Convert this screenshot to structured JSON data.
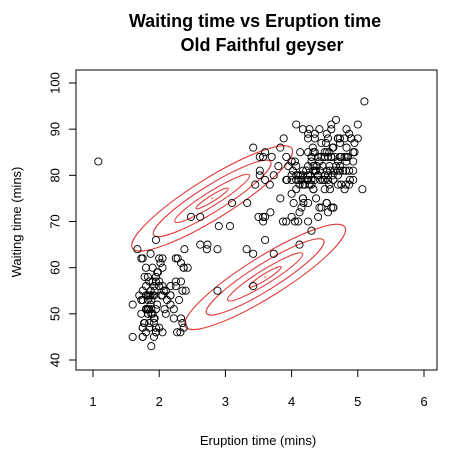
{
  "chart_data": {
    "type": "scatter",
    "title": "Waiting time vs Eruption time",
    "subtitle": "Old Faithful geyser",
    "xlabel": "Eruption time (mins)",
    "ylabel": "Waiting time (mins)",
    "xlim": [
      1,
      6
    ],
    "ylim": [
      40,
      100
    ],
    "xticks": [
      "1",
      "2",
      "3",
      "4",
      "5",
      "6"
    ],
    "yticks": [
      "40",
      "50",
      "60",
      "70",
      "80",
      "90",
      "100"
    ],
    "point_color": "#000000",
    "contour_color": "#e03c3c",
    "grid": false,
    "series": [
      {
        "points": [
          [
            3.6,
            79
          ],
          [
            1.8,
            54
          ],
          [
            3.33,
            74
          ],
          [
            2.28,
            62
          ],
          [
            4.53,
            85
          ],
          [
            2.88,
            55
          ],
          [
            4.7,
            88
          ],
          [
            3.6,
            85
          ],
          [
            1.95,
            51
          ],
          [
            4.35,
            85
          ],
          [
            1.83,
            54
          ],
          [
            3.92,
            84
          ],
          [
            4.2,
            78
          ],
          [
            1.75,
            47
          ],
          [
            4.7,
            83
          ],
          [
            2.17,
            52
          ],
          [
            1.75,
            62
          ],
          [
            4.8,
            84
          ],
          [
            1.6,
            52
          ],
          [
            4.25,
            79
          ],
          [
            1.8,
            51
          ],
          [
            1.75,
            47
          ],
          [
            3.45,
            78
          ],
          [
            3.07,
            69
          ],
          [
            4.53,
            74
          ],
          [
            1.08,
            83
          ],
          [
            2.25,
            62
          ],
          [
            4.75,
            78
          ],
          [
            3.52,
            81
          ],
          [
            4.4,
            80
          ],
          [
            2.73,
            65
          ],
          [
            4.4,
            80
          ],
          [
            4.25,
            74
          ],
          [
            4.93,
            83
          ],
          [
            1.75,
            45
          ],
          [
            3.8,
            82
          ],
          [
            1.6,
            45
          ],
          [
            3.42,
            86
          ],
          [
            4.55,
            72
          ],
          [
            1.73,
            53
          ],
          [
            1.67,
            64
          ],
          [
            4.63,
            73
          ],
          [
            1.88,
            50
          ],
          [
            4.33,
            82
          ],
          [
            1.95,
            46
          ],
          [
            4.0,
            83
          ],
          [
            1.83,
            53
          ],
          [
            4.38,
            82
          ],
          [
            1.8,
            51
          ],
          [
            4.6,
            91
          ],
          [
            1.92,
            45
          ],
          [
            4.35,
            89
          ],
          [
            2.72,
            64
          ],
          [
            4.37,
            75
          ],
          [
            4.0,
            79
          ],
          [
            4.12,
            65
          ],
          [
            4.78,
            81
          ],
          [
            1.9,
            57
          ],
          [
            4.22,
            81
          ],
          [
            4.2,
            78
          ],
          [
            1.92,
            48
          ],
          [
            4.05,
            83
          ],
          [
            2.0,
            62
          ],
          [
            4.62,
            80
          ],
          [
            2.3,
            53
          ],
          [
            4.43,
            79
          ],
          [
            2.17,
            54
          ],
          [
            4.7,
            78
          ],
          [
            1.75,
            45
          ],
          [
            4.83,
            84
          ],
          [
            2.22,
            51
          ],
          [
            4.7,
            80
          ],
          [
            1.87,
            52
          ],
          [
            4.1,
            70
          ],
          [
            1.73,
            62
          ],
          [
            4.67,
            82
          ],
          [
            1.78,
            48
          ],
          [
            4.4,
            80
          ],
          [
            1.87,
            54
          ],
          [
            4.57,
            85
          ],
          [
            1.95,
            58
          ],
          [
            4.87,
            89
          ],
          [
            1.9,
            54
          ],
          [
            5.1,
            96
          ],
          [
            1.8,
            46
          ],
          [
            4.5,
            79
          ],
          [
            2.37,
            47
          ],
          [
            4.25,
            82
          ],
          [
            3.83,
            86
          ],
          [
            4.73,
            82
          ],
          [
            4.65,
            81
          ],
          [
            3.87,
            70
          ],
          [
            4.73,
            81
          ],
          [
            4.8,
            77
          ],
          [
            4.93,
            81
          ],
          [
            4.33,
            77
          ],
          [
            4.18,
            74
          ],
          [
            5.0,
            88
          ],
          [
            4.35,
            81
          ],
          [
            4.7,
            88
          ],
          [
            3.42,
            56
          ],
          [
            4.45,
            87
          ],
          [
            1.98,
            59
          ],
          [
            4.83,
            83
          ],
          [
            4.17,
            75
          ],
          [
            4.17,
            78
          ],
          [
            3.93,
            79
          ],
          [
            4.63,
            73
          ],
          [
            1.87,
            55
          ],
          [
            4.53,
            81
          ],
          [
            1.8,
            51
          ],
          [
            4.07,
            82
          ],
          [
            2.43,
            60
          ],
          [
            4.33,
            77
          ],
          [
            1.85,
            57
          ],
          [
            4.5,
            77
          ],
          [
            2.17,
            56
          ],
          [
            4.1,
            80
          ],
          [
            2.1,
            55
          ],
          [
            4.85,
            84
          ],
          [
            1.95,
            57
          ],
          [
            4.6,
            90
          ],
          [
            2.0,
            56
          ],
          [
            4.4,
            84
          ],
          [
            1.75,
            53
          ],
          [
            4.3,
            83
          ],
          [
            2.07,
            55
          ],
          [
            4.35,
            79
          ],
          [
            3.42,
            63
          ],
          [
            4.75,
            84
          ],
          [
            4.3,
            84
          ],
          [
            4.45,
            73
          ],
          [
            4.07,
            91
          ],
          [
            4.13,
            80
          ],
          [
            4.52,
            87
          ],
          [
            1.78,
            58
          ],
          [
            4.03,
            74
          ],
          [
            3.5,
            71
          ],
          [
            3.95,
            82
          ],
          [
            4.0,
            76
          ],
          [
            4.93,
            85
          ],
          [
            4.7,
            81
          ],
          [
            1.97,
            59
          ],
          [
            3.83,
            75
          ],
          [
            2.0,
            47
          ],
          [
            4.67,
            92
          ],
          [
            1.83,
            51
          ],
          [
            4.3,
            78
          ],
          [
            3.52,
            84
          ],
          [
            4.9,
            88
          ],
          [
            1.83,
            58
          ],
          [
            4.63,
            73
          ],
          [
            3.7,
            84
          ],
          [
            4.5,
            80
          ],
          [
            4.1,
            79
          ],
          [
            2.9,
            69
          ],
          [
            2.25,
            57
          ],
          [
            1.88,
            43
          ],
          [
            3.6,
            66
          ],
          [
            2.33,
            61
          ],
          [
            2.08,
            51
          ],
          [
            3.57,
            71
          ],
          [
            4.0,
            80
          ],
          [
            3.73,
            63
          ],
          [
            2.37,
            60
          ],
          [
            4.55,
            79
          ],
          [
            4.25,
            89
          ],
          [
            2.25,
            56
          ],
          [
            4.25,
            70
          ],
          [
            4.95,
            87
          ],
          [
            1.93,
            49
          ],
          [
            4.6,
            84
          ],
          [
            4.82,
            78
          ],
          [
            1.73,
            50
          ],
          [
            4.63,
            86
          ],
          [
            3.57,
            70
          ],
          [
            2.88,
            64
          ],
          [
            4.5,
            84
          ],
          [
            4.15,
            73
          ],
          [
            4.5,
            85
          ],
          [
            1.92,
            56
          ],
          [
            4.3,
            79
          ],
          [
            1.88,
            53
          ],
          [
            4.62,
            86
          ],
          [
            2.03,
            54
          ],
          [
            4.28,
            80
          ],
          [
            1.93,
            55
          ],
          [
            4.63,
            79
          ],
          [
            2.05,
            46
          ],
          [
            4.55,
            80
          ],
          [
            4.73,
            88
          ],
          [
            4.83,
            90
          ],
          [
            4.53,
            74
          ],
          [
            1.77,
            48
          ],
          [
            3.52,
            80
          ],
          [
            4.6,
            73
          ],
          [
            2.12,
            53
          ],
          [
            4.42,
            90
          ],
          [
            3.57,
            84
          ],
          [
            4.27,
            78
          ],
          [
            4.25,
            88
          ],
          [
            2.35,
            48
          ],
          [
            4.17,
            90
          ],
          [
            2.4,
            55
          ],
          [
            4.13,
            85
          ],
          [
            1.95,
            47
          ],
          [
            4.05,
            70
          ],
          [
            4.42,
            83
          ],
          [
            1.8,
            60
          ],
          [
            4.47,
            82
          ],
          [
            1.9,
            60
          ],
          [
            4.7,
            88
          ],
          [
            2.22,
            49
          ],
          [
            4.9,
            88
          ],
          [
            3.73,
            80
          ],
          [
            4.83,
            84
          ],
          [
            4.12,
            78
          ],
          [
            4.07,
            80
          ],
          [
            1.87,
            63
          ],
          [
            4.37,
            81
          ],
          [
            4.17,
            80
          ],
          [
            4.17,
            75
          ],
          [
            2.32,
            46
          ],
          [
            4.15,
            79
          ],
          [
            2.05,
            56
          ],
          [
            4.58,
            77
          ],
          [
            2.17,
            54
          ],
          [
            4.57,
            78
          ],
          [
            1.97,
            52
          ],
          [
            4.88,
            79
          ],
          [
            1.7,
            54
          ],
          [
            5.0,
            91
          ],
          [
            4.0,
            71
          ],
          [
            1.75,
            55
          ],
          [
            2.62,
            71
          ],
          [
            2.38,
            64
          ],
          [
            4.12,
            72
          ],
          [
            3.92,
            70
          ],
          [
            2.05,
            60
          ],
          [
            4.35,
            88
          ],
          [
            1.92,
            54
          ],
          [
            4.33,
            82
          ],
          [
            3.32,
            64
          ],
          [
            4.33,
            85
          ],
          [
            4.53,
            74
          ],
          [
            2.62,
            65
          ],
          [
            3.67,
            78
          ],
          [
            4.5,
            84
          ],
          [
            4.55,
            84
          ],
          [
            1.82,
            51
          ],
          [
            4.55,
            88
          ],
          [
            2.33,
            49
          ],
          [
            3.6,
            71
          ],
          [
            4.33,
            81
          ],
          [
            1.88,
            51
          ],
          [
            3.1,
            74
          ],
          [
            1.85,
            47
          ],
          [
            2.35,
            55
          ],
          [
            4.27,
            78
          ],
          [
            1.9,
            50
          ],
          [
            4.3,
            68
          ],
          [
            4.93,
            79
          ],
          [
            2.05,
            62
          ],
          [
            4.02,
            81
          ],
          [
            4.45,
            84
          ],
          [
            3.68,
            72
          ],
          [
            1.83,
            50
          ],
          [
            2.27,
            46
          ],
          [
            4.25,
            85
          ],
          [
            2.05,
            54
          ],
          [
            4.8,
            88
          ],
          [
            2.02,
            61
          ],
          [
            4.32,
            86
          ],
          [
            1.95,
            46
          ],
          [
            2.33,
            57
          ],
          [
            4.6,
            84
          ],
          [
            1.85,
            48
          ],
          [
            4.57,
            82
          ],
          [
            2.37,
            60
          ],
          [
            4.42,
            73
          ],
          [
            4.23,
            79
          ],
          [
            3.88,
            88
          ],
          [
            4.07,
            77
          ],
          [
            4.43,
            81
          ],
          [
            4.3,
            84
          ],
          [
            2.1,
            50
          ],
          [
            4.0,
            83
          ],
          [
            4.73,
            84
          ],
          [
            1.83,
            50
          ],
          [
            4.17,
            81
          ],
          [
            4.82,
            81
          ],
          [
            4.87,
            78
          ],
          [
            4.65,
            84
          ],
          [
            1.95,
            66
          ],
          [
            4.47,
            79
          ],
          [
            3.92,
            79
          ],
          [
            4.83,
            86
          ],
          [
            1.85,
            51
          ],
          [
            4.53,
            89
          ],
          [
            2.0,
            57
          ],
          [
            4.95,
            85
          ],
          [
            1.92,
            49
          ],
          [
            2.48,
            71
          ],
          [
            4.58,
            81
          ],
          [
            4.27,
            90
          ],
          [
            4.4,
            71
          ],
          [
            4.6,
            84
          ],
          [
            1.85,
            54
          ],
          [
            5.07,
            77
          ],
          [
            4.87,
            81
          ],
          [
            1.8,
            56
          ],
          [
            4.25,
            80
          ],
          [
            4.07,
            79
          ],
          [
            4.73,
            87
          ]
        ]
      }
    ],
    "contours": [
      {
        "center": [
          2.8,
          75
        ],
        "levels": 4
      },
      {
        "center": [
          3.6,
          58
        ],
        "levels": 4
      }
    ]
  }
}
